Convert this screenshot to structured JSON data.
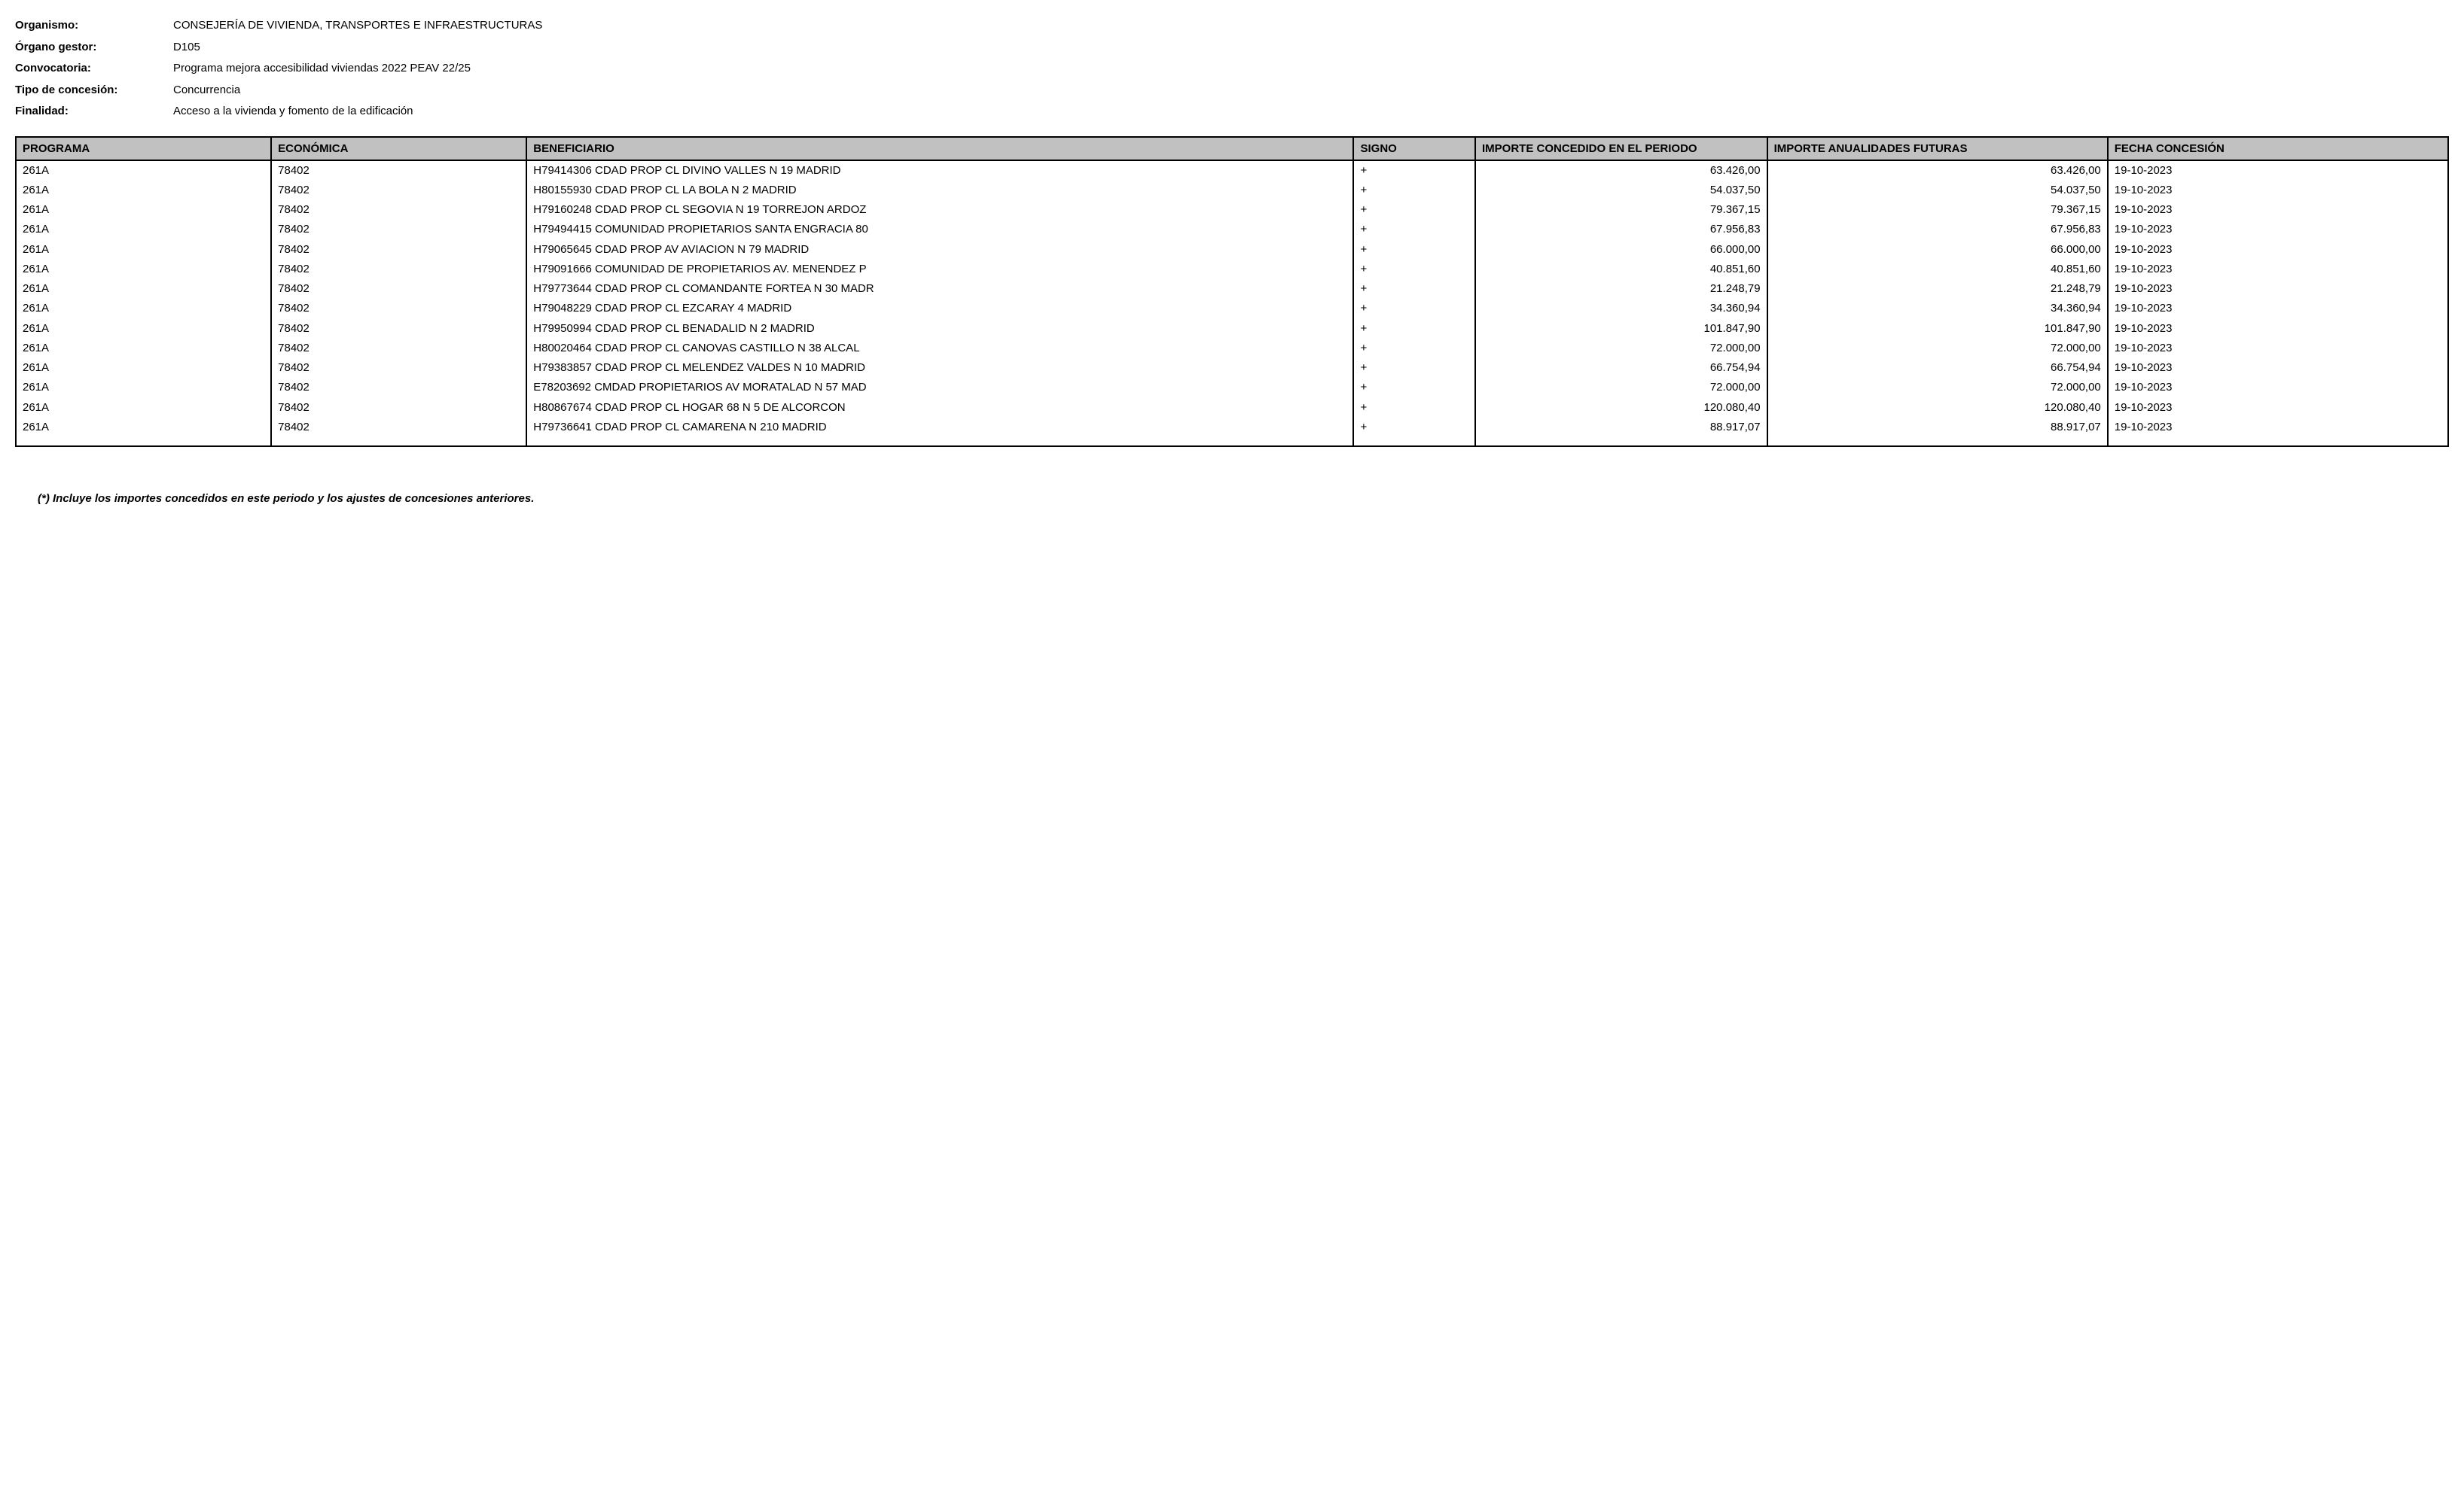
{
  "header": {
    "labels": {
      "organismo": "Organismo:",
      "organo_gestor": "Órgano gestor:",
      "convocatoria": "Convocatoria:",
      "tipo_concesion": "Tipo de concesión:",
      "finalidad": "Finalidad:"
    },
    "values": {
      "organismo": "CONSEJERÍA DE VIVIENDA, TRANSPORTES E INFRAESTRUCTURAS",
      "organo_gestor": "D105",
      "convocatoria": "Programa mejora accesibilidad viviendas 2022 PEAV 22/25",
      "tipo_concesion": "Concurrencia",
      "finalidad": "Acceso a la vivienda y fomento de la edificación"
    }
  },
  "table": {
    "columns": {
      "programa": "PROGRAMA",
      "economica": "ECONÓMICA",
      "beneficiario": "BENEFICIARIO",
      "signo": "SIGNO",
      "importe_periodo": "IMPORTE CONCEDIDO EN EL PERIODO",
      "importe_futuras": "IMPORTE ANUALIDADES FUTURAS",
      "fecha": "FECHA CONCESIÓN"
    },
    "rows": [
      {
        "programa": "261A",
        "economica": "78402",
        "beneficiario": "H79414306    CDAD PROP CL DIVINO VALLES N 19 MADRID",
        "signo": "+",
        "importe_periodo": "63.426,00",
        "importe_futuras": "63.426,00",
        "fecha": "19-10-2023"
      },
      {
        "programa": "261A",
        "economica": "78402",
        "beneficiario": "H80155930    CDAD PROP CL LA BOLA N 2 MADRID",
        "signo": "+",
        "importe_periodo": "54.037,50",
        "importe_futuras": "54.037,50",
        "fecha": "19-10-2023"
      },
      {
        "programa": "261A",
        "economica": "78402",
        "beneficiario": "H79160248    CDAD PROP CL SEGOVIA N 19 TORREJON ARDOZ",
        "signo": "+",
        "importe_periodo": "79.367,15",
        "importe_futuras": "79.367,15",
        "fecha": "19-10-2023"
      },
      {
        "programa": "261A",
        "economica": "78402",
        "beneficiario": "H79494415    COMUNIDAD PROPIETARIOS SANTA ENGRACIA 80",
        "signo": "+",
        "importe_periodo": "67.956,83",
        "importe_futuras": "67.956,83",
        "fecha": "19-10-2023"
      },
      {
        "programa": "261A",
        "economica": "78402",
        "beneficiario": "H79065645    CDAD PROP AV AVIACION N 79 MADRID",
        "signo": "+",
        "importe_periodo": "66.000,00",
        "importe_futuras": "66.000,00",
        "fecha": "19-10-2023"
      },
      {
        "programa": "261A",
        "economica": "78402",
        "beneficiario": "H79091666    COMUNIDAD DE PROPIETARIOS AV. MENENDEZ P",
        "signo": "+",
        "importe_periodo": "40.851,60",
        "importe_futuras": "40.851,60",
        "fecha": "19-10-2023"
      },
      {
        "programa": "261A",
        "economica": "78402",
        "beneficiario": "H79773644    CDAD PROP CL COMANDANTE FORTEA N 30 MADR",
        "signo": "+",
        "importe_periodo": "21.248,79",
        "importe_futuras": "21.248,79",
        "fecha": "19-10-2023"
      },
      {
        "programa": "261A",
        "economica": "78402",
        "beneficiario": "H79048229    CDAD PROP CL EZCARAY 4 MADRID",
        "signo": "+",
        "importe_periodo": "34.360,94",
        "importe_futuras": "34.360,94",
        "fecha": "19-10-2023"
      },
      {
        "programa": "261A",
        "economica": "78402",
        "beneficiario": "H79950994    CDAD PROP CL BENADALID N 2 MADRID",
        "signo": "+",
        "importe_periodo": "101.847,90",
        "importe_futuras": "101.847,90",
        "fecha": "19-10-2023"
      },
      {
        "programa": "261A",
        "economica": "78402",
        "beneficiario": "H80020464    CDAD PROP CL CANOVAS CASTILLO N 38 ALCAL",
        "signo": "+",
        "importe_periodo": "72.000,00",
        "importe_futuras": "72.000,00",
        "fecha": "19-10-2023"
      },
      {
        "programa": "261A",
        "economica": "78402",
        "beneficiario": "H79383857    CDAD PROP CL MELENDEZ VALDES N 10 MADRID",
        "signo": "+",
        "importe_periodo": "66.754,94",
        "importe_futuras": "66.754,94",
        "fecha": "19-10-2023"
      },
      {
        "programa": "261A",
        "economica": "78402",
        "beneficiario": "E78203692    CMDAD PROPIETARIOS AV MORATALAD N 57 MAD",
        "signo": "+",
        "importe_periodo": "72.000,00",
        "importe_futuras": "72.000,00",
        "fecha": "19-10-2023"
      },
      {
        "programa": "261A",
        "economica": "78402",
        "beneficiario": "H80867674    CDAD PROP CL HOGAR 68 N 5 DE ALCORCON",
        "signo": "+",
        "importe_periodo": "120.080,40",
        "importe_futuras": "120.080,40",
        "fecha": "19-10-2023"
      },
      {
        "programa": "261A",
        "economica": "78402",
        "beneficiario": "H79736641    CDAD PROP CL CAMARENA N 210 MADRID",
        "signo": "+",
        "importe_periodo": "88.917,07",
        "importe_futuras": "88.917,07",
        "fecha": "19-10-2023"
      }
    ]
  },
  "footnote": "(*) Incluye los importes concedidos en este periodo y los ajustes de concesiones anteriores."
}
